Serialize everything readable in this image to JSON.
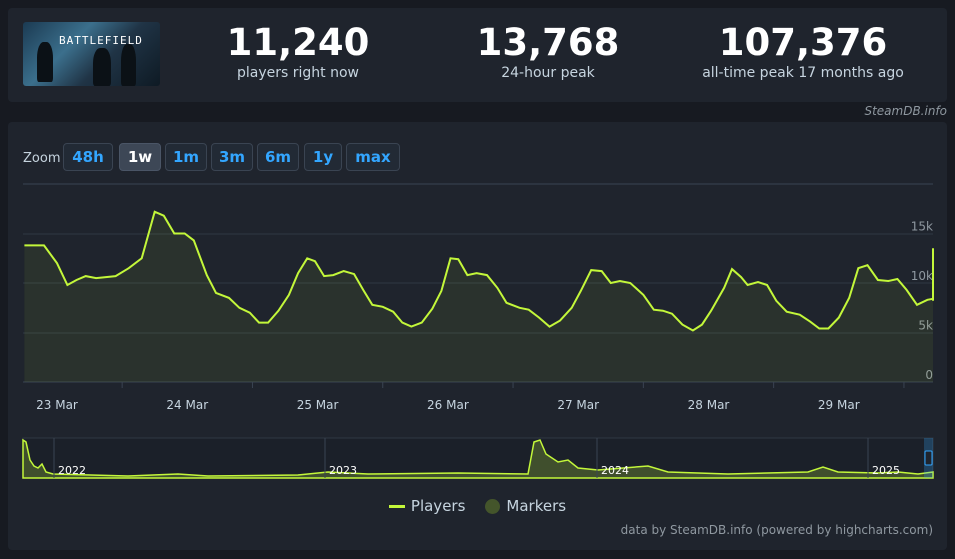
{
  "header": {
    "banner_title": "BATTLEFIELD",
    "stats": [
      {
        "value": "11,240",
        "label": "players right now"
      },
      {
        "value": "13,768",
        "label": "24-hour peak"
      },
      {
        "value": "107,376",
        "label": "all-time peak 17 months ago"
      }
    ],
    "credit": "SteamDB.info"
  },
  "zoom": {
    "label": "Zoom",
    "buttons": [
      "48h",
      "1w",
      "1m",
      "3m",
      "6m",
      "1y",
      "max"
    ],
    "active": "1w"
  },
  "legend": {
    "players": "Players",
    "markers": "Markers"
  },
  "credit_bottom": "data by SteamDB.info (powered by highcharts.com)",
  "colors": {
    "line": "#c3f73a",
    "marker": "#44552b",
    "accent": "#33a6ff"
  },
  "chart_data": {
    "type": "line",
    "series_name": "Players",
    "x_labels": [
      "23 Mar",
      "24 Mar",
      "25 Mar",
      "26 Mar",
      "27 Mar",
      "28 Mar",
      "29 Mar"
    ],
    "y_ticks": [
      "0",
      "5k",
      "10k",
      "15k"
    ],
    "ylim": [
      0,
      20000
    ],
    "x_range_days": [
      -0.25,
      6.7
    ],
    "points": [
      [
        -0.25,
        13800
      ],
      [
        -0.1,
        13800
      ],
      [
        0,
        12000
      ],
      [
        0.08,
        9800
      ],
      [
        0.15,
        10300
      ],
      [
        0.22,
        10700
      ],
      [
        0.3,
        10500
      ],
      [
        0.45,
        10700
      ],
      [
        0.55,
        11500
      ],
      [
        0.65,
        12500
      ],
      [
        0.75,
        17200
      ],
      [
        0.82,
        16800
      ],
      [
        0.9,
        15000
      ],
      [
        0.98,
        15000
      ],
      [
        1.05,
        14300
      ],
      [
        1.15,
        10800
      ],
      [
        1.22,
        9000
      ],
      [
        1.32,
        8500
      ],
      [
        1.4,
        7500
      ],
      [
        1.48,
        7000
      ],
      [
        1.55,
        6000
      ],
      [
        1.62,
        6000
      ],
      [
        1.7,
        7200
      ],
      [
        1.78,
        8800
      ],
      [
        1.85,
        11000
      ],
      [
        1.92,
        12500
      ],
      [
        1.98,
        12200
      ],
      [
        2.05,
        10700
      ],
      [
        2.12,
        10800
      ],
      [
        2.2,
        11200
      ],
      [
        2.28,
        10900
      ],
      [
        2.35,
        9300
      ],
      [
        2.42,
        7800
      ],
      [
        2.5,
        7600
      ],
      [
        2.58,
        7100
      ],
      [
        2.65,
        6000
      ],
      [
        2.72,
        5600
      ],
      [
        2.8,
        6000
      ],
      [
        2.88,
        7400
      ],
      [
        2.95,
        9200
      ],
      [
        3.02,
        12500
      ],
      [
        3.08,
        12400
      ],
      [
        3.15,
        10800
      ],
      [
        3.22,
        11000
      ],
      [
        3.3,
        10800
      ],
      [
        3.38,
        9500
      ],
      [
        3.45,
        8000
      ],
      [
        3.55,
        7500
      ],
      [
        3.62,
        7300
      ],
      [
        3.7,
        6500
      ],
      [
        3.78,
        5600
      ],
      [
        3.86,
        6200
      ],
      [
        3.95,
        7500
      ],
      [
        4.02,
        9200
      ],
      [
        4.1,
        11300
      ],
      [
        4.18,
        11200
      ],
      [
        4.25,
        10000
      ],
      [
        4.32,
        10200
      ],
      [
        4.4,
        10000
      ],
      [
        4.5,
        8800
      ],
      [
        4.58,
        7300
      ],
      [
        4.65,
        7200
      ],
      [
        4.72,
        6900
      ],
      [
        4.8,
        5800
      ],
      [
        4.88,
        5200
      ],
      [
        4.95,
        5800
      ],
      [
        5.02,
        7200
      ],
      [
        5.12,
        9500
      ],
      [
        5.18,
        11400
      ],
      [
        5.25,
        10600
      ],
      [
        5.3,
        9800
      ],
      [
        5.38,
        10100
      ],
      [
        5.45,
        9800
      ],
      [
        5.52,
        8200
      ],
      [
        5.6,
        7100
      ],
      [
        5.7,
        6800
      ],
      [
        5.78,
        6100
      ],
      [
        5.85,
        5400
      ],
      [
        5.92,
        5400
      ],
      [
        6.0,
        6500
      ],
      [
        6.08,
        8500
      ],
      [
        6.15,
        11500
      ],
      [
        6.22,
        11800
      ],
      [
        6.3,
        10300
      ],
      [
        6.38,
        10200
      ],
      [
        6.45,
        10400
      ],
      [
        6.52,
        9300
      ],
      [
        6.6,
        7800
      ],
      [
        6.68,
        8300
      ],
      [
        6.75,
        8400
      ],
      [
        6.82,
        8200
      ],
      [
        6.9,
        8600
      ],
      [
        6.98,
        9200
      ],
      [
        7.05,
        11000
      ],
      [
        7.12,
        13500
      ],
      [
        7.2,
        13000
      ],
      [
        7.28,
        11800
      ],
      [
        7.35,
        11240
      ]
    ]
  },
  "navigator": {
    "year_labels": [
      "2022",
      "2023",
      "2024",
      "2025"
    ]
  }
}
